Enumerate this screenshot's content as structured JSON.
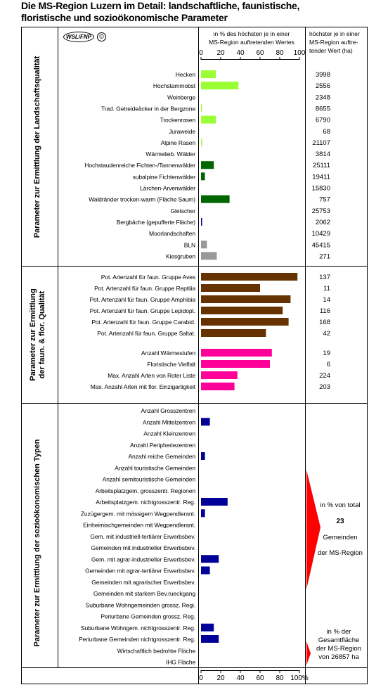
{
  "title_line1": "Die MS-Region Luzern im Detail: landschaftliche, faunistische,",
  "title_line2": "floristische und sozioökonomische Parameter",
  "logo": {
    "wsl": "WSL",
    "fnp": "FNP",
    "copyright": "©"
  },
  "header": {
    "mid_line1": "in % des höchsten je in einer",
    "mid_line2": "MS-Region auftretenden Wertes",
    "right_line1": "höchster je in einer",
    "right_line2": "MS-Region auftre-",
    "right_line3": "tender Wert (ha)"
  },
  "axis_ticks": [
    "0",
    "20",
    "40",
    "60",
    "80",
    "100"
  ],
  "axis_bottom_ticks": [
    "0",
    "20",
    "40",
    "60",
    "80",
    "100%"
  ],
  "colors": {
    "light_green": "#99ff33",
    "dark_green": "#006600",
    "navy": "#000099",
    "gray": "#999999",
    "brown": "#663300",
    "pink": "#ff0099",
    "red": "#ff0000"
  },
  "chart_data": {
    "type": "bar",
    "orientation": "horizontal",
    "xlim": [
      0,
      100
    ],
    "sections": [
      {
        "label": "Parameter zur Ermittlung der Landschaftsqualität",
        "rows": [
          {
            "label": "Hecken",
            "value": 15,
            "color": "light_green",
            "max": "3998"
          },
          {
            "label": "Hochstammobst",
            "value": 38,
            "color": "light_green",
            "max": "2556"
          },
          {
            "label": "Weinberge",
            "value": 0,
            "color": "light_green",
            "max": "2348"
          },
          {
            "label": "Trad. Getreideäcker in der Bergzone",
            "value": 1,
            "color": "light_green",
            "max": "8655"
          },
          {
            "label": "Trockenrasen",
            "value": 15,
            "color": "light_green",
            "max": "6790"
          },
          {
            "label": "Juraweide",
            "value": 0,
            "color": "light_green",
            "max": "68"
          },
          {
            "label": "Alpine Rasen",
            "value": 1,
            "color": "light_green",
            "max": "21107"
          },
          {
            "label": "Wärmelieb. Wälder",
            "value": 0,
            "color": "dark_green",
            "max": "3814"
          },
          {
            "label": "Hochstaudenreiche Fichten-/Tannenwälder",
            "value": 13,
            "color": "dark_green",
            "max": "25111"
          },
          {
            "label": "subalpine Fichtenwälder",
            "value": 4,
            "color": "dark_green",
            "max": "19411"
          },
          {
            "label": "Lärchen-Arvenwälder",
            "value": 0,
            "color": "dark_green",
            "max": "15830"
          },
          {
            "label": "Waldränder trocken-warm (Fläche Saum)",
            "value": 29,
            "color": "dark_green",
            "max": "757"
          },
          {
            "label": "Gletscher",
            "value": 0,
            "color": "navy",
            "max": "25753"
          },
          {
            "label": "Bergbäche (gepufferte Fläche)",
            "value": 1,
            "color": "navy",
            "max": "2062"
          },
          {
            "label": "Moorlandschaften",
            "value": 0,
            "color": "navy",
            "max": "10429"
          },
          {
            "label": "BLN",
            "value": 6,
            "color": "gray",
            "max": "45415"
          },
          {
            "label": "Kiesgruben",
            "value": 16,
            "color": "gray",
            "max": "271"
          }
        ]
      },
      {
        "label": "Parameter zur Ermittlung der faun. & flor. Qualität",
        "rows": [
          {
            "label": "Pot. Artenzahl für faun. Gruppe Aves",
            "value": 98,
            "color": "brown",
            "max": "137"
          },
          {
            "label": "Pot. Artenzahl für faun. Gruppe Reptilia",
            "value": 60,
            "color": "brown",
            "max": "11"
          },
          {
            "label": "Pot. Artenzahl für faun. Gruppe Amphibia",
            "value": 91,
            "color": "brown",
            "max": "14"
          },
          {
            "label": "Pot. Artenzahl für faun. Gruppe Lepidopt.",
            "value": 83,
            "color": "brown",
            "max": "116"
          },
          {
            "label": "Pot. Artenzahl für faun. Gruppe Carabid.",
            "value": 89,
            "color": "brown",
            "max": "168"
          },
          {
            "label": "Pot. Artenzahl für faun. Gruppe Saltat.",
            "value": 66,
            "color": "brown",
            "max": "42"
          },
          {
            "label": "Anzahl Wärmestufen",
            "value": 72,
            "color": "pink",
            "max": "19"
          },
          {
            "label": "Floristische Vielfalt",
            "value": 70,
            "color": "pink",
            "max": "6"
          },
          {
            "label": "Max. Anzahl Arten von Roter Liste",
            "value": 37,
            "color": "pink",
            "max": "224"
          },
          {
            "label": "Max. Anzahl Arten mit flor. Einzigartigkeit",
            "value": 34,
            "color": "pink",
            "max": "203"
          }
        ]
      },
      {
        "label": "Parameter zur Ermittlung der sozioökonomischen Typen",
        "rows": [
          {
            "label": "Anzahl Grosszentren",
            "value": 0,
            "color": "navy"
          },
          {
            "label": "Anzahl Mittelzentren",
            "value": 9,
            "color": "navy"
          },
          {
            "label": "Anzahl Kleinzentren",
            "value": 0,
            "color": "navy"
          },
          {
            "label": "Anzahl Peripheriezentren",
            "value": 0,
            "color": "navy"
          },
          {
            "label": "Anzahl reiche Gemeinden",
            "value": 4,
            "color": "navy"
          },
          {
            "label": "Anzahl touristische Gemeinden",
            "value": 0,
            "color": "navy"
          },
          {
            "label": "Anzahl semitouristische Gemeinden",
            "value": 0,
            "color": "navy"
          },
          {
            "label": "Arbeitsplatzgem. grosszentr. Regionen",
            "value": 0,
            "color": "navy"
          },
          {
            "label": "Arbeitsplatzgem. nichtgrosszentr. Reg.",
            "value": 27,
            "color": "navy"
          },
          {
            "label": "Zuzügergem. mit mässigem Wegpendlerant.",
            "value": 4,
            "color": "navy"
          },
          {
            "label": "Einheimischgemeinden mit Wegpendlerant.",
            "value": 0,
            "color": "navy"
          },
          {
            "label": "Gem. mit industriell-tertiärer Erwerbsbev.",
            "value": 0,
            "color": "navy"
          },
          {
            "label": "Gemeinden mit industrieller Erwerbsbev.",
            "value": 0,
            "color": "navy"
          },
          {
            "label": "Gem. mit agrar-industrieller Erwerbsbev.",
            "value": 18,
            "color": "navy"
          },
          {
            "label": "Gemeinden mit agrar-tertiärer Erwerbsbev.",
            "value": 9,
            "color": "navy"
          },
          {
            "label": "Gemeinden mit agrarischer Erwerbsbev.",
            "value": 0,
            "color": "navy"
          },
          {
            "label": "Gemeinden mit starkem Bev.rueckgang",
            "value": 0,
            "color": "navy"
          },
          {
            "label": "Suburbane Wohngemeinden grossz. Regi.",
            "value": 0,
            "color": "navy"
          },
          {
            "label": "Periurbane Gemeinden grossz. Reg.",
            "value": 0,
            "color": "navy"
          },
          {
            "label": "Suburbane Wohngem. nichtgrosszentr. Reg.",
            "value": 13,
            "color": "navy"
          },
          {
            "label": "Periurbane Gemeinden nichtgrosszentr. Reg.",
            "value": 18,
            "color": "navy"
          },
          {
            "label": "Wirtschaftlich bedrohte Fläche",
            "value": 0,
            "color": "navy"
          },
          {
            "label": "IHG Fläche",
            "value": 0,
            "color": "navy"
          }
        ]
      }
    ]
  },
  "socio_notes": {
    "total_line1": "in % von total",
    "total_count": "23",
    "total_line2": "Gemeinden",
    "total_line3": "der MS-Region",
    "area_line1": "in % der",
    "area_line2": "Gesamtfläche",
    "area_line3": "der MS-Region",
    "area_line4": "von 26857 ha"
  }
}
